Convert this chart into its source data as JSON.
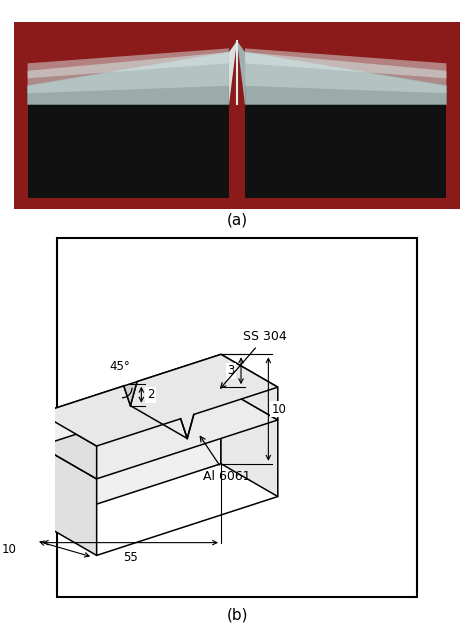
{
  "fig_width": 4.74,
  "fig_height": 6.34,
  "bg_color": "#ffffff",
  "label_a": "(a)",
  "label_b": "(b)",
  "ss304_label": "SS 304",
  "al6061_label": "Al 6061",
  "angle_label": "45°",
  "dim_2": "2",
  "dim_3": "3",
  "dim_10_right": "10",
  "dim_55": "55",
  "dim_10_left": "10"
}
